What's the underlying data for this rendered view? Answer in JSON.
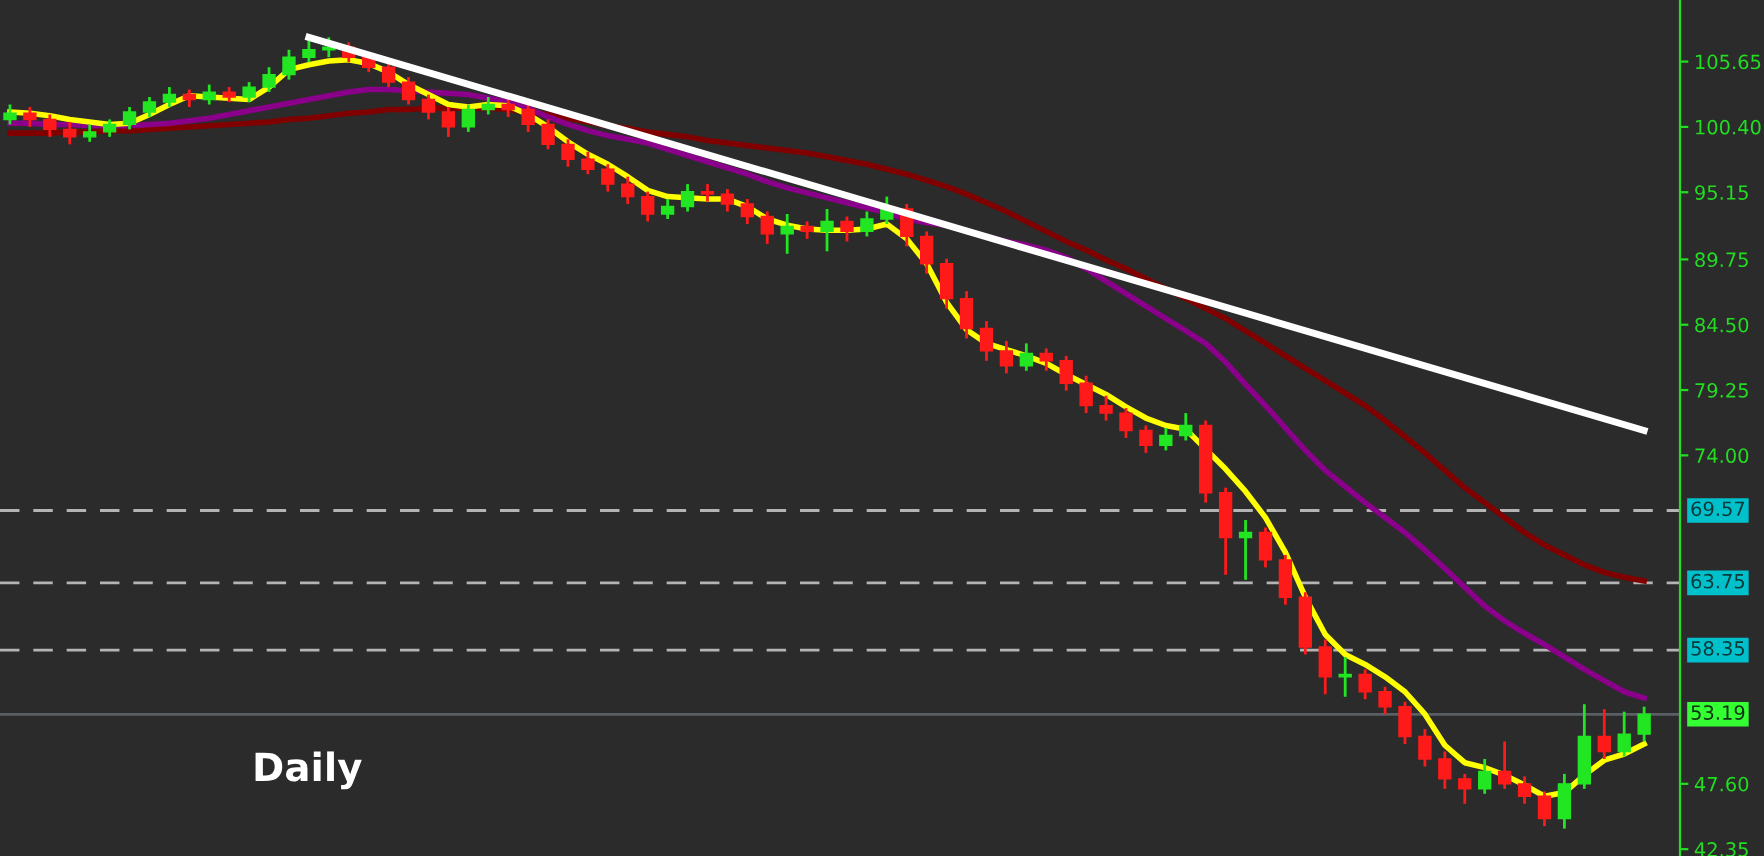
{
  "chart_data": {
    "type": "candlestick",
    "categories": [
      null,
      null,
      null,
      null,
      null,
      null,
      null,
      null,
      null,
      null,
      null,
      null,
      null,
      null,
      null,
      null,
      null,
      null,
      null,
      null,
      null,
      null,
      null,
      null,
      null,
      null,
      null,
      null,
      null,
      null,
      null,
      null,
      null,
      null,
      null,
      null,
      null,
      null,
      null,
      null,
      null,
      null,
      null,
      null,
      null,
      null,
      null,
      null,
      null,
      null,
      null,
      null,
      null,
      null,
      null,
      null,
      null,
      null,
      null,
      null,
      null,
      null,
      null,
      null,
      null,
      null,
      null,
      null,
      null,
      null,
      null,
      null,
      null,
      null,
      null,
      null,
      null,
      null,
      null,
      null,
      null,
      null,
      null
    ],
    "ohlc": [
      [
        101.0,
        102.2,
        100.6,
        101.5
      ],
      [
        101.5,
        102.0,
        100.4,
        101.0
      ],
      [
        101.0,
        101.4,
        99.6,
        100.2
      ],
      [
        100.2,
        100.8,
        99.0,
        99.6
      ],
      [
        99.6,
        100.6,
        99.2,
        100.0
      ],
      [
        100.0,
        101.0,
        99.6,
        100.6
      ],
      [
        100.6,
        102.0,
        100.2,
        101.6
      ],
      [
        101.6,
        102.8,
        101.2,
        102.4
      ],
      [
        102.4,
        103.6,
        102.0,
        103.0
      ],
      [
        103.0,
        103.4,
        102.0,
        102.6
      ],
      [
        102.6,
        103.8,
        102.2,
        103.2
      ],
      [
        103.2,
        103.6,
        102.4,
        102.8
      ],
      [
        102.8,
        104.0,
        102.4,
        103.6
      ],
      [
        103.6,
        105.2,
        103.2,
        104.6
      ],
      [
        104.6,
        106.6,
        104.2,
        106.0
      ],
      [
        106.0,
        107.4,
        105.6,
        106.6
      ],
      [
        106.6,
        107.6,
        106.0,
        106.8
      ],
      [
        106.8,
        107.2,
        105.6,
        106.0
      ],
      [
        106.0,
        106.4,
        104.8,
        105.2
      ],
      [
        105.2,
        105.6,
        103.6,
        104.0
      ],
      [
        104.0,
        104.4,
        102.2,
        102.6
      ],
      [
        102.6,
        103.0,
        101.0,
        101.6
      ],
      [
        101.6,
        102.0,
        99.6,
        100.4
      ],
      [
        100.4,
        102.2,
        100.0,
        101.8
      ],
      [
        101.8,
        102.8,
        101.4,
        102.2
      ],
      [
        102.2,
        102.6,
        101.2,
        101.8
      ],
      [
        101.8,
        102.2,
        100.0,
        100.6
      ],
      [
        100.6,
        101.0,
        98.6,
        99.0
      ],
      [
        99.0,
        99.4,
        97.2,
        97.8
      ],
      [
        97.8,
        98.4,
        96.6,
        97.0
      ],
      [
        97.0,
        97.4,
        95.2,
        95.8
      ],
      [
        95.8,
        96.4,
        94.2,
        94.8
      ],
      [
        94.8,
        95.2,
        92.8,
        93.4
      ],
      [
        93.4,
        94.6,
        93.0,
        94.0
      ],
      [
        94.0,
        95.8,
        93.6,
        95.2
      ],
      [
        95.2,
        95.8,
        94.4,
        95.0
      ],
      [
        95.0,
        95.4,
        93.6,
        94.2
      ],
      [
        94.2,
        94.6,
        92.6,
        93.2
      ],
      [
        93.2,
        93.6,
        91.0,
        91.8
      ],
      [
        91.8,
        93.4,
        90.2,
        92.4
      ],
      [
        92.4,
        92.8,
        91.4,
        92.0
      ],
      [
        92.0,
        93.8,
        90.4,
        92.8
      ],
      [
        92.8,
        93.2,
        91.2,
        92.0
      ],
      [
        92.0,
        93.6,
        91.6,
        93.0
      ],
      [
        93.0,
        94.8,
        92.6,
        93.8
      ],
      [
        93.8,
        94.2,
        90.8,
        91.6
      ],
      [
        91.6,
        92.0,
        88.6,
        89.4
      ],
      [
        89.4,
        89.8,
        85.8,
        86.6
      ],
      [
        86.6,
        87.2,
        83.4,
        84.2
      ],
      [
        84.2,
        84.8,
        81.6,
        82.4
      ],
      [
        82.4,
        83.2,
        80.6,
        81.2
      ],
      [
        81.2,
        83.0,
        80.8,
        82.2
      ],
      [
        82.2,
        82.6,
        80.8,
        81.6
      ],
      [
        81.6,
        82.0,
        79.2,
        79.8
      ],
      [
        79.8,
        80.4,
        77.4,
        78.0
      ],
      [
        78.0,
        78.8,
        76.8,
        77.4
      ],
      [
        77.4,
        77.8,
        75.4,
        76.0
      ],
      [
        76.0,
        76.4,
        74.2,
        74.8
      ],
      [
        74.8,
        76.2,
        74.4,
        75.6
      ],
      [
        75.6,
        77.4,
        75.2,
        76.4
      ],
      [
        76.4,
        76.8,
        70.2,
        71.0
      ],
      [
        71.0,
        71.4,
        64.4,
        67.4
      ],
      [
        67.4,
        68.8,
        64.0,
        67.8
      ],
      [
        67.8,
        68.2,
        65.0,
        65.6
      ],
      [
        65.6,
        66.0,
        62.0,
        62.6
      ],
      [
        62.6,
        63.0,
        58.0,
        58.6
      ],
      [
        58.6,
        59.2,
        54.8,
        56.2
      ],
      [
        56.2,
        57.8,
        54.6,
        56.4
      ],
      [
        56.4,
        56.8,
        54.4,
        55.0
      ],
      [
        55.0,
        55.4,
        53.2,
        53.8
      ],
      [
        53.8,
        54.2,
        50.8,
        51.4
      ],
      [
        51.4,
        52.0,
        49.0,
        49.6
      ],
      [
        49.6,
        50.2,
        47.2,
        48.0
      ],
      [
        48.0,
        48.4,
        46.0,
        47.2
      ],
      [
        47.2,
        49.6,
        46.8,
        48.6
      ],
      [
        48.6,
        51.0,
        47.2,
        47.6
      ],
      [
        47.6,
        48.2,
        46.0,
        46.6
      ],
      [
        46.6,
        47.0,
        44.2,
        44.8
      ],
      [
        44.8,
        48.4,
        44.0,
        47.6
      ],
      [
        47.6,
        54.0,
        47.2,
        51.4
      ],
      [
        51.4,
        53.6,
        49.6,
        50.2
      ],
      [
        50.2,
        53.4,
        49.8,
        51.6
      ],
      [
        51.6,
        53.8,
        51.0,
        53.19
      ]
    ],
    "series": [
      {
        "type": "line",
        "color": "#800000",
        "values": [
          99.9,
          99.9,
          99.9,
          100.0,
          100.0,
          100.1,
          100.1,
          100.2,
          100.3,
          100.4,
          100.5,
          100.6,
          100.7,
          100.8,
          101.0,
          101.1,
          101.3,
          101.5,
          101.6,
          101.8,
          101.8,
          101.9,
          101.9,
          101.9,
          101.9,
          101.8,
          101.6,
          101.4,
          101.1,
          100.8,
          100.5,
          100.3,
          100.0,
          99.8,
          99.6,
          99.3,
          99.1,
          98.9,
          98.7,
          98.5,
          98.3,
          98.0,
          97.7,
          97.4,
          97.0,
          96.6,
          96.1,
          95.6,
          95.0,
          94.3,
          93.6,
          92.8,
          92.0,
          91.2,
          90.5,
          89.7,
          89.0,
          88.2,
          87.4,
          86.6,
          85.8,
          85.0,
          84.0,
          83.0,
          82.0,
          81.0,
          80.0,
          79.0,
          78.0,
          76.8,
          75.5,
          74.2,
          72.8,
          71.4,
          70.2,
          69.0,
          67.8,
          66.8,
          66.0,
          65.2,
          64.6,
          64.2,
          63.9
        ]
      },
      {
        "type": "line",
        "color": "#8b008b",
        "values": [
          100.7,
          100.7,
          100.6,
          100.6,
          100.5,
          100.5,
          100.5,
          100.6,
          100.7,
          100.9,
          101.1,
          101.4,
          101.7,
          102.0,
          102.3,
          102.6,
          102.9,
          103.2,
          103.4,
          103.4,
          103.3,
          103.2,
          103.1,
          103.0,
          102.7,
          102.4,
          101.9,
          101.2,
          100.6,
          100.1,
          99.7,
          99.4,
          99.1,
          98.6,
          98.1,
          97.6,
          97.1,
          96.6,
          96.0,
          95.5,
          95.1,
          94.7,
          94.3,
          93.9,
          93.5,
          93.0,
          92.7,
          92.5,
          92.0,
          91.6,
          91.2,
          90.9,
          90.5,
          89.9,
          89.0,
          88.0,
          87.0,
          86.0,
          85.0,
          84.0,
          83.0,
          81.5,
          79.7,
          78.0,
          76.2,
          74.4,
          72.8,
          71.5,
          70.2,
          69.0,
          67.8,
          66.4,
          64.9,
          63.4,
          61.9,
          60.7,
          59.7,
          58.8,
          57.8,
          56.8,
          55.9,
          55.0,
          54.5
        ]
      },
      {
        "type": "line",
        "color": "#ffff00",
        "values": [
          101.6,
          101.5,
          101.3,
          101.0,
          100.8,
          100.6,
          100.7,
          101.4,
          102.2,
          102.9,
          102.8,
          102.7,
          102.6,
          103.6,
          105.0,
          105.4,
          105.7,
          105.8,
          105.5,
          104.8,
          103.8,
          103.0,
          102.2,
          102.0,
          102.2,
          102.1,
          101.4,
          100.4,
          99.2,
          98.2,
          97.4,
          96.4,
          95.3,
          94.8,
          94.7,
          94.6,
          94.6,
          94.0,
          93.0,
          92.5,
          92.2,
          92.1,
          92.1,
          92.2,
          92.6,
          91.4,
          89.4,
          86.3,
          84.1,
          83.0,
          82.5,
          82.0,
          81.4,
          80.5,
          79.7,
          78.9,
          77.9,
          77.0,
          76.4,
          76.1,
          74.5,
          72.9,
          71.1,
          69.0,
          66.2,
          62.6,
          59.6,
          58.0,
          57.2,
          56.2,
          55.0,
          53.2,
          50.7,
          49.3,
          48.9,
          48.3,
          47.5,
          46.6,
          46.9,
          48.3,
          49.5,
          50.0,
          50.8
        ]
      },
      {
        "type": "line",
        "color": "#ffffff",
        "values": [
          null,
          null,
          null,
          null,
          null,
          null,
          null,
          null,
          null,
          null,
          null,
          null,
          null,
          null,
          null,
          107.6,
          null,
          null,
          null,
          null,
          null,
          null,
          null,
          null,
          null,
          null,
          null,
          null,
          null,
          null,
          null,
          null,
          null,
          null,
          null,
          null,
          null,
          null,
          null,
          null,
          null,
          null,
          null,
          null,
          null,
          null,
          null,
          null,
          null,
          null,
          null,
          null,
          null,
          null,
          null,
          null,
          null,
          null,
          null,
          null,
          null,
          null,
          null,
          null,
          null,
          null,
          null,
          null,
          null,
          null,
          null,
          null,
          null,
          null,
          null,
          null,
          null,
          null,
          null,
          null,
          null,
          null,
          76.0
        ]
      }
    ],
    "ylim": [
      41.8,
      110.6
    ],
    "yticks": [
      105.65,
      {
        "value": 100.4,
        "label": "100.40"
      },
      95.15,
      89.75,
      {
        "value": 84.5,
        "label": "84.50"
      },
      79.25,
      {
        "value": 74,
        "label": "74.00"
      },
      {
        "value": 47.6,
        "label": "47.60"
      },
      42.35
    ],
    "ref_lines": [
      {
        "axis": "y",
        "value": 69.57,
        "label": "69.57",
        "color": "#b4b4b4",
        "line_style": "dashed"
      },
      {
        "axis": "y",
        "value": 63.75,
        "label": "63.75",
        "color": "#b4b4b4",
        "line_style": "dashed"
      },
      {
        "axis": "y",
        "value": 58.35,
        "label": "58.35",
        "color": "#b4b4b4",
        "line_style": "dashed"
      },
      {
        "axis": "y",
        "value": 53.19,
        "label": "53.19",
        "color": "#5a5f66",
        "line_style": "solid"
      }
    ],
    "annotations": [
      "Daily"
    ],
    "tick_labels": "y",
    "grid": false,
    "legend": false
  }
}
